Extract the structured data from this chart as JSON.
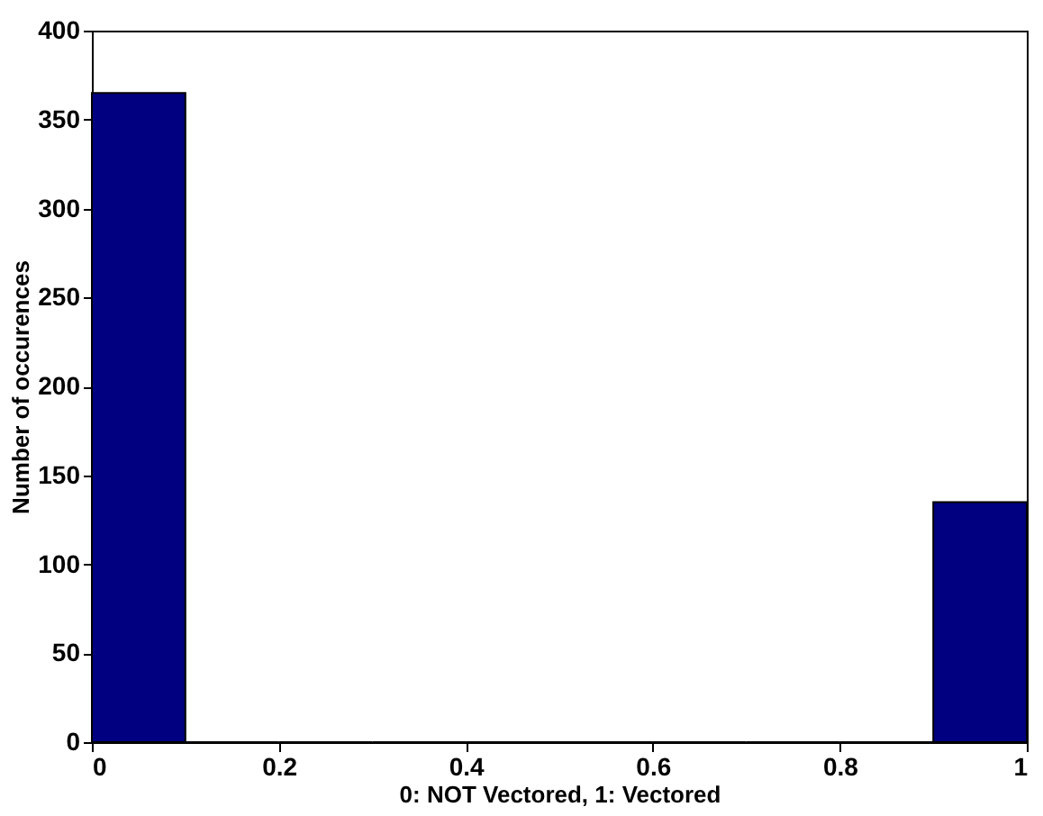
{
  "chart_data": {
    "type": "histogram",
    "xlabel": "0: NOT Vectored, 1: Vectored",
    "ylabel": "Number of occurences",
    "bins": [
      0,
      0.1,
      0.2,
      0.3,
      0.4,
      0.5,
      0.6,
      0.7,
      0.8,
      0.9,
      1.0
    ],
    "values": [
      365,
      0,
      0,
      0,
      0,
      0,
      0,
      0,
      0,
      135
    ],
    "color": "#000080",
    "xlim": [
      0,
      1
    ],
    "xticks": [
      0,
      0.2,
      0.4,
      0.6,
      0.8,
      1
    ],
    "ylim": [
      0,
      400
    ],
    "yticks": [
      0,
      50,
      100,
      150,
      200,
      250,
      300,
      350,
      400
    ],
    "grid": false
  }
}
